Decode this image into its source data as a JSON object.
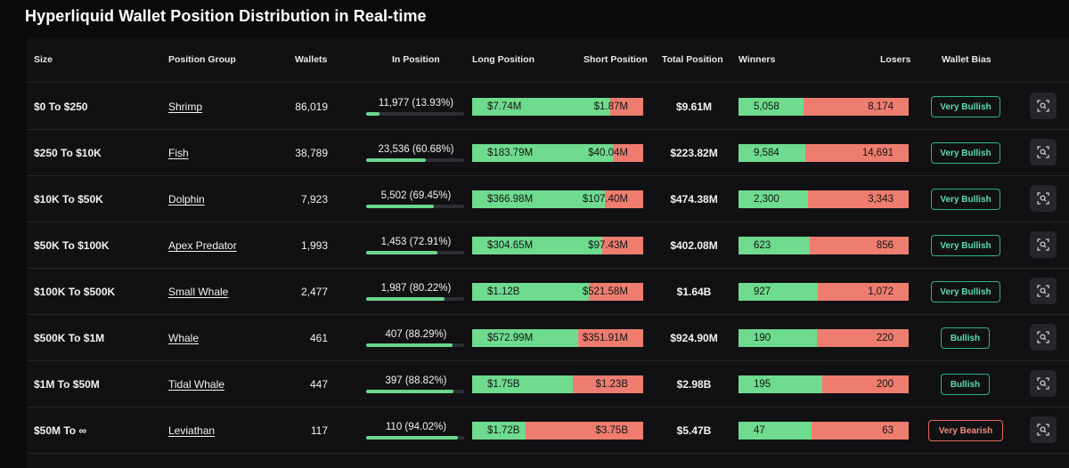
{
  "page": {
    "title": "Hyperliquid Wallet Position Distribution in Real-time"
  },
  "colors": {
    "long": "#6edb8f",
    "short": "#ee7d6f",
    "bullish": "#2db38a",
    "bearish": "#e46a5e",
    "background": "#111113"
  },
  "header": {
    "size": "Size",
    "group": "Position Group",
    "wallets": "Wallets",
    "in_position": "In Position",
    "long": "Long Position",
    "short": "Short Position",
    "total": "Total Position",
    "winners": "Winners",
    "losers": "Losers",
    "bias": "Wallet Bias"
  },
  "rows": [
    {
      "size": "$0 To $250",
      "group": "Shrimp",
      "wallets": "86,019",
      "in_position": "11,977 (13.93%)",
      "in_position_pct": 13.93,
      "long": "$7.74M",
      "short": "$1.87M",
      "long_share": 0.805,
      "total": "$9.61M",
      "winners": "5,058",
      "losers": "8,174",
      "winner_share": 0.382,
      "bias": "Very Bullish",
      "bias_type": "bull",
      "action_icon": "scan-icon"
    },
    {
      "size": "$250 To $10K",
      "group": "Fish",
      "wallets": "38,789",
      "in_position": "23,536 (60.68%)",
      "in_position_pct": 60.68,
      "long": "$183.79M",
      "short": "$40.04M",
      "long_share": 0.821,
      "total": "$223.82M",
      "winners": "9,584",
      "losers": "14,691",
      "winner_share": 0.395,
      "bias": "Very Bullish",
      "bias_type": "bull",
      "action_icon": "scan-icon"
    },
    {
      "size": "$10K To $50K",
      "group": "Dolphin",
      "wallets": "7,923",
      "in_position": "5,502 (69.45%)",
      "in_position_pct": 69.45,
      "long": "$366.98M",
      "short": "$107.40M",
      "long_share": 0.774,
      "total": "$474.38M",
      "winners": "2,300",
      "losers": "3,343",
      "winner_share": 0.408,
      "bias": "Very Bullish",
      "bias_type": "bull",
      "action_icon": "scan-icon"
    },
    {
      "size": "$50K To $100K",
      "group": "Apex Predator",
      "wallets": "1,993",
      "in_position": "1,453 (72.91%)",
      "in_position_pct": 72.91,
      "long": "$304.65M",
      "short": "$97.43M",
      "long_share": 0.758,
      "total": "$402.08M",
      "winners": "623",
      "losers": "856",
      "winner_share": 0.421,
      "bias": "Very Bullish",
      "bias_type": "bull",
      "action_icon": "scan-icon"
    },
    {
      "size": "$100K To $500K",
      "group": "Small Whale",
      "wallets": "2,477",
      "in_position": "1,987 (80.22%)",
      "in_position_pct": 80.22,
      "long": "$1.12B",
      "short": "$521.58M",
      "long_share": 0.682,
      "total": "$1.64B",
      "winners": "927",
      "losers": "1,072",
      "winner_share": 0.464,
      "bias": "Very Bullish",
      "bias_type": "bull",
      "action_icon": "scan-icon"
    },
    {
      "size": "$500K To $1M",
      "group": "Whale",
      "wallets": "461",
      "in_position": "407 (88.29%)",
      "in_position_pct": 88.29,
      "long": "$572.99M",
      "short": "$351.91M",
      "long_share": 0.619,
      "total": "$924.90M",
      "winners": "190",
      "losers": "220",
      "winner_share": 0.463,
      "bias": "Bullish",
      "bias_type": "bull",
      "action_icon": "scan-icon"
    },
    {
      "size": "$1M To $50M",
      "group": "Tidal Whale",
      "wallets": "447",
      "in_position": "397 (88.82%)",
      "in_position_pct": 88.82,
      "long": "$1.75B",
      "short": "$1.23B",
      "long_share": 0.587,
      "total": "$2.98B",
      "winners": "195",
      "losers": "200",
      "winner_share": 0.494,
      "bias": "Bullish",
      "bias_type": "bull",
      "action_icon": "scan-icon"
    },
    {
      "size": "$50M To ∞",
      "group": "Leviathan",
      "wallets": "117",
      "in_position": "110 (94.02%)",
      "in_position_pct": 94.02,
      "long": "$1.72B",
      "short": "$3.75B",
      "long_share": 0.314,
      "total": "$5.47B",
      "winners": "47",
      "losers": "63",
      "winner_share": 0.427,
      "bias": "Very Bearish",
      "bias_type": "bear",
      "action_icon": "scan-icon"
    }
  ]
}
